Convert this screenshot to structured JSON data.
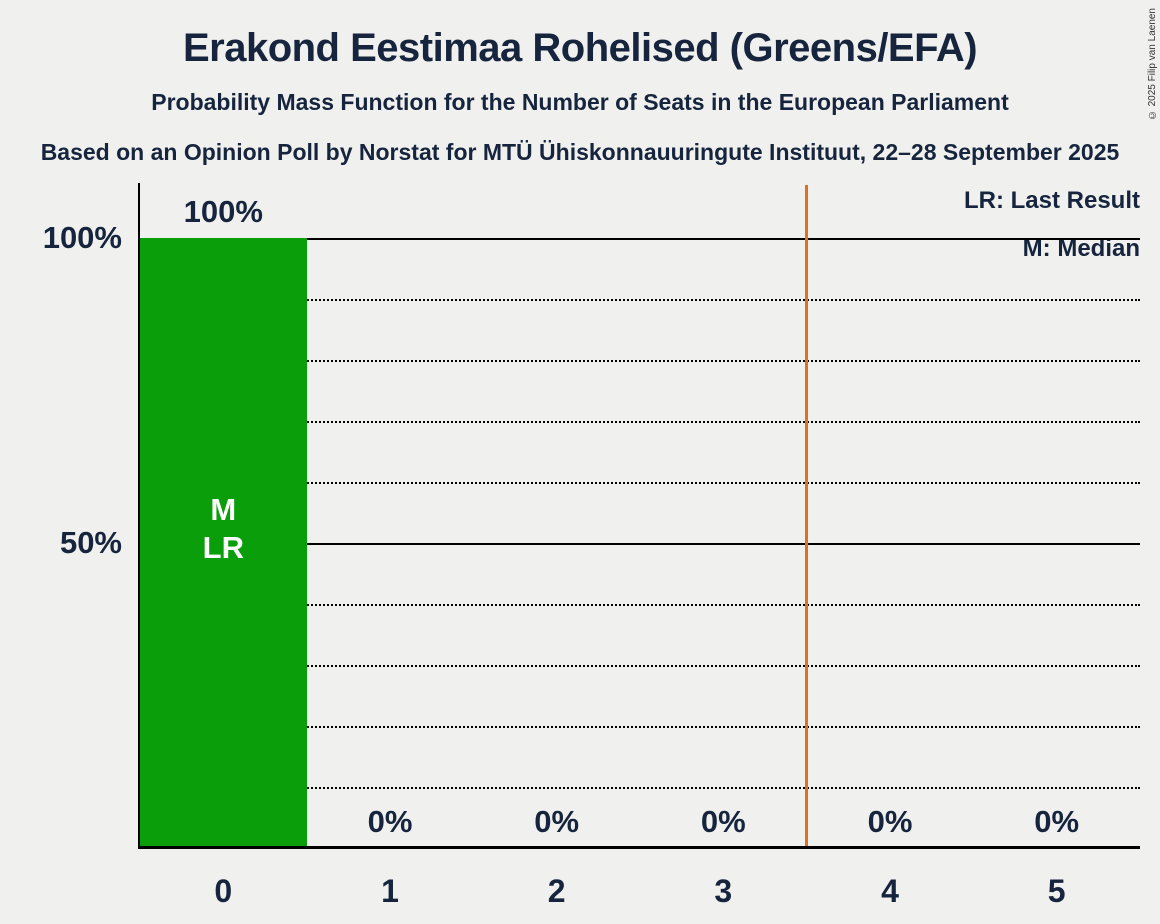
{
  "header": {
    "title": "Erakond Eestimaa Rohelised (Greens/EFA)",
    "subtitle": "Probability Mass Function for the Number of Seats in the European Parliament",
    "source_line": "Based on an Opinion Poll by Norstat for MTÜ Ühiskonnauuringute Instituut, 22–28 September 2025"
  },
  "legend": {
    "lr_label": "LR: Last Result",
    "m_label": "M: Median"
  },
  "copyright": "© 2025 Filip van Laenen",
  "chart_data": {
    "type": "bar",
    "title": "Erakond Eestimaa Rohelised (Greens/EFA)",
    "categories": [
      "0",
      "1",
      "2",
      "3",
      "4",
      "5"
    ],
    "values": [
      100,
      0,
      0,
      0,
      0,
      0
    ],
    "value_labels": [
      "100%",
      "0%",
      "0%",
      "0%",
      "0%",
      "0%"
    ],
    "xlabel": "",
    "ylabel": "",
    "ylim": [
      0,
      100
    ],
    "yticks": [
      50,
      100
    ],
    "ytick_labels": [
      "50%",
      "100%"
    ],
    "gridlines_solid": [
      50,
      100
    ],
    "gridlines_dotted": [
      10,
      20,
      30,
      40,
      60,
      70,
      80,
      90
    ],
    "grid": true,
    "legend_position": "top-right",
    "bar_color": "#0a9e0a",
    "bar_annotations": [
      "M",
      "LR"
    ],
    "annotation_index": 0,
    "median_seats": 0,
    "last_result_seats": 0,
    "threshold_line_x": 3.5,
    "threshold_line_color": "#e0711c"
  },
  "colors": {
    "background": "#f0f0ee",
    "text": "#16253d",
    "axis": "#000000",
    "bar": "#0a9e0a",
    "threshold": "#e0711c"
  }
}
